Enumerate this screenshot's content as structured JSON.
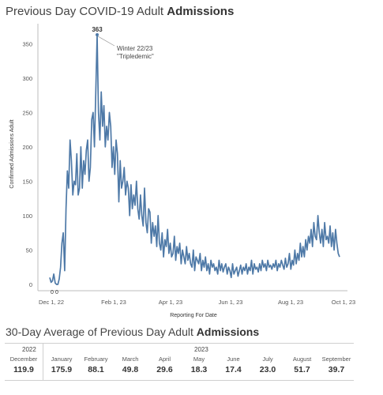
{
  "header": {
    "title_prefix": "Previous Day COVID-19 Adult ",
    "title_bold": "Admissions"
  },
  "chart_data": {
    "type": "line",
    "ylabel": "Confirmed Admissions Adult",
    "xlabel": "Reporting For Date",
    "ylim": [
      0,
      380
    ],
    "yticks": [
      0,
      50,
      100,
      150,
      200,
      250,
      300,
      350
    ],
    "xticks": [
      "Dec 1, 22",
      "Feb 1, 23",
      "Apr 1, 23",
      "Jun 1, 23",
      "Aug 1, 23",
      "Oct 1, 23"
    ],
    "grid": false,
    "color": "#4e79a7",
    "annotation": {
      "label": "363",
      "line1": "Winter 22/23",
      "line2": "\"Tripledemic\"",
      "value": 363
    },
    "low_labels": [
      "0",
      "0"
    ],
    "series": [
      {
        "values": [
          10,
          3,
          5,
          15,
          2,
          0,
          0,
          8,
          25,
          60,
          75,
          20,
          110,
          165,
          140,
          210,
          180,
          130,
          150,
          145,
          190,
          130,
          140,
          200,
          140,
          180,
          160,
          195,
          210,
          150,
          170,
          240,
          250,
          200,
          280,
          363,
          250,
          210,
          280,
          230,
          260,
          200,
          230,
          210,
          250,
          230,
          170,
          200,
          160,
          210,
          190,
          120,
          180,
          140,
          150,
          170,
          130,
          150,
          140,
          100,
          145,
          110,
          130,
          115,
          150,
          110,
          95,
          130,
          100,
          85,
          140,
          90,
          75,
          110,
          105,
          60,
          90,
          70,
          85,
          55,
          100,
          60,
          50,
          75,
          40,
          65,
          55,
          80,
          45,
          60,
          40,
          45,
          70,
          35,
          55,
          45,
          60,
          30,
          50,
          40,
          30,
          55,
          35,
          45,
          30,
          25,
          50,
          20,
          40,
          35,
          30,
          45,
          20,
          35,
          25,
          40,
          20,
          30,
          15,
          35,
          25,
          30,
          20,
          25,
          15,
          35,
          20,
          30,
          18,
          25,
          30,
          15,
          25,
          20,
          10,
          30,
          15,
          20,
          25,
          12,
          20,
          28,
          15,
          25,
          20,
          30,
          15,
          25,
          20,
          35,
          15,
          30,
          22,
          25,
          18,
          30,
          20,
          35,
          25,
          30,
          20,
          35,
          25,
          28,
          22,
          30,
          25,
          35,
          20,
          30,
          25,
          35,
          28,
          22,
          38,
          25,
          30,
          45,
          22,
          35,
          28,
          50,
          30,
          45,
          35,
          60,
          40,
          55,
          40,
          65,
          50,
          70,
          60,
          80,
          55,
          90,
          70,
          65,
          100,
          75,
          60,
          80,
          55,
          90,
          65,
          70,
          60,
          85,
          55,
          75,
          50,
          80,
          60,
          45,
          40
        ]
      }
    ]
  },
  "table": {
    "title_prefix": "30-Day Average of Previous Day Adult ",
    "title_bold": "Admissions",
    "years": [
      "2022",
      "2023"
    ],
    "months": [
      "December",
      "January",
      "February",
      "March",
      "April",
      "May",
      "June",
      "July",
      "August",
      "September"
    ],
    "values": [
      "119.9",
      "175.9",
      "88.1",
      "49.8",
      "29.6",
      "18.3",
      "17.4",
      "23.0",
      "51.7",
      "39.7"
    ]
  }
}
